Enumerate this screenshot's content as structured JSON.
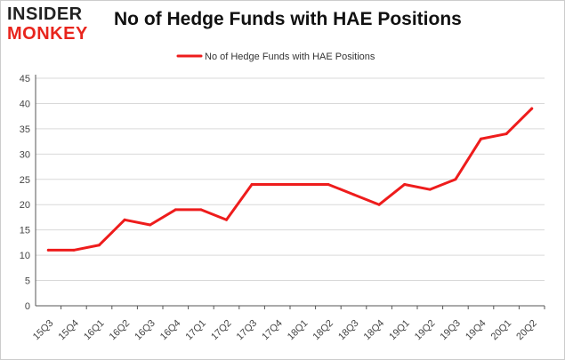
{
  "logo": {
    "line1": "INSIDER",
    "line2": "MONKEY"
  },
  "colors": {
    "series": "#ee1c1c",
    "grid": "#d9d9d9",
    "axis": "#555555",
    "border": "#cccccc"
  },
  "chart_data": {
    "type": "line",
    "title": "No of Hedge Funds with HAE Positions",
    "xlabel": "",
    "ylabel": "",
    "legend_position": "top-center",
    "grid": true,
    "ylim": [
      0,
      45
    ],
    "yticks": [
      0,
      5,
      10,
      15,
      20,
      25,
      30,
      35,
      40,
      45
    ],
    "categories": [
      "15Q3",
      "15Q4",
      "16Q1",
      "16Q2",
      "16Q3",
      "16Q4",
      "17Q1",
      "17Q2",
      "17Q3",
      "17Q4",
      "18Q1",
      "18Q2",
      "18Q3",
      "18Q4",
      "19Q1",
      "19Q2",
      "19Q3",
      "19Q4",
      "20Q1",
      "20Q2"
    ],
    "series": [
      {
        "name": "No of Hedge Funds with HAE Positions",
        "values": [
          11,
          11,
          12,
          17,
          16,
          19,
          19,
          17,
          24,
          24,
          24,
          24,
          22,
          20,
          24,
          23,
          25,
          33,
          34,
          39
        ]
      }
    ]
  }
}
